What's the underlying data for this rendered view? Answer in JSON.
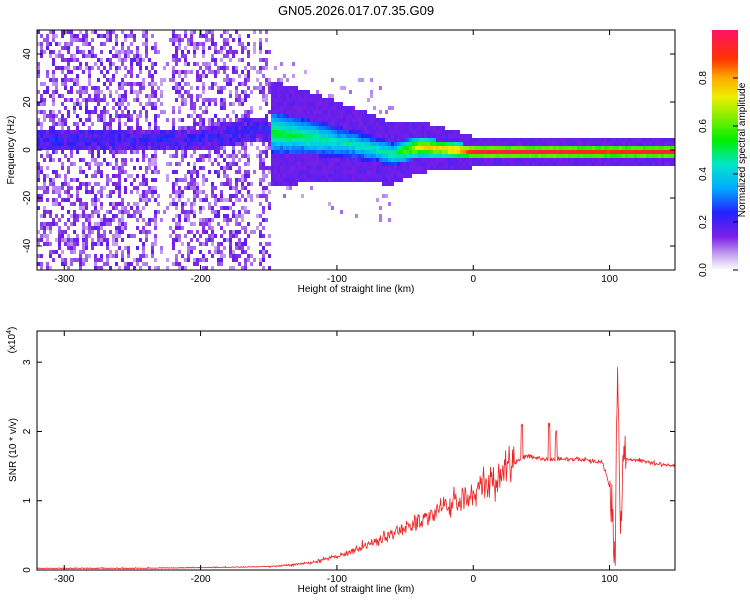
{
  "title": "GN05.2026.017.07.35.G09",
  "chart_data": [
    {
      "type": "heatmap",
      "xlabel": "Height of straight line (km)",
      "ylabel": "Frequency (Hz)",
      "xlim": [
        -320,
        148
      ],
      "ylim": [
        -50,
        50
      ],
      "xticks": [
        -300,
        -200,
        -100,
        0,
        100
      ],
      "yticks": [
        -40,
        -20,
        0,
        20,
        40
      ],
      "colorbar": {
        "label": "Normalized spectral amplitude",
        "range": [
          0.0,
          1.0
        ],
        "ticks": [
          0.0,
          0.2,
          0.4,
          0.6,
          0.8
        ],
        "tick_labels": [
          "0.0",
          "0.2",
          "0.4",
          "0.6",
          "0.8"
        ]
      },
      "ridge": {
        "description_of_values": "dominant frequency along height",
        "x": [
          -320,
          -250,
          -200,
          -160,
          -150,
          -120,
          -100,
          -80,
          -60,
          -40,
          -20,
          0,
          50,
          100,
          148
        ],
        "y": [
          5,
          5,
          5,
          10,
          8,
          6,
          4,
          2,
          -1,
          2,
          1,
          0,
          0,
          0,
          0
        ],
        "amplitude": [
          0.15,
          0.15,
          0.25,
          0.4,
          0.55,
          0.5,
          0.45,
          0.45,
          0.5,
          0.75,
          0.8,
          0.95,
          0.95,
          0.9,
          0.95
        ]
      }
    },
    {
      "type": "line",
      "xlabel": "Height of straight line (km)",
      "ylabel": "SNR (10 * v/v)",
      "yscale_label": "(x10",
      "yscale_exp": "4",
      "yscale_close": ")",
      "xlim": [
        -320,
        148
      ],
      "ylim": [
        0,
        3.45
      ],
      "xticks": [
        -300,
        -200,
        -100,
        0,
        100
      ],
      "yticks": [
        0,
        1,
        2,
        3
      ],
      "series": [
        {
          "color": "#ee2222",
          "x": [
            -320,
            -250,
            -200,
            -160,
            -140,
            -120,
            -100,
            -80,
            -60,
            -40,
            -20,
            0,
            20,
            35,
            40,
            50,
            60,
            80,
            95,
            100,
            104,
            106,
            108,
            110,
            115,
            130,
            148
          ],
          "y": [
            0.02,
            0.02,
            0.03,
            0.04,
            0.06,
            0.1,
            0.2,
            0.35,
            0.5,
            0.7,
            0.9,
            1.1,
            1.4,
            1.6,
            1.65,
            1.6,
            1.6,
            1.6,
            1.55,
            1.2,
            0.3,
            2.9,
            0.3,
            1.6,
            1.6,
            1.55,
            1.5
          ]
        }
      ]
    }
  ]
}
